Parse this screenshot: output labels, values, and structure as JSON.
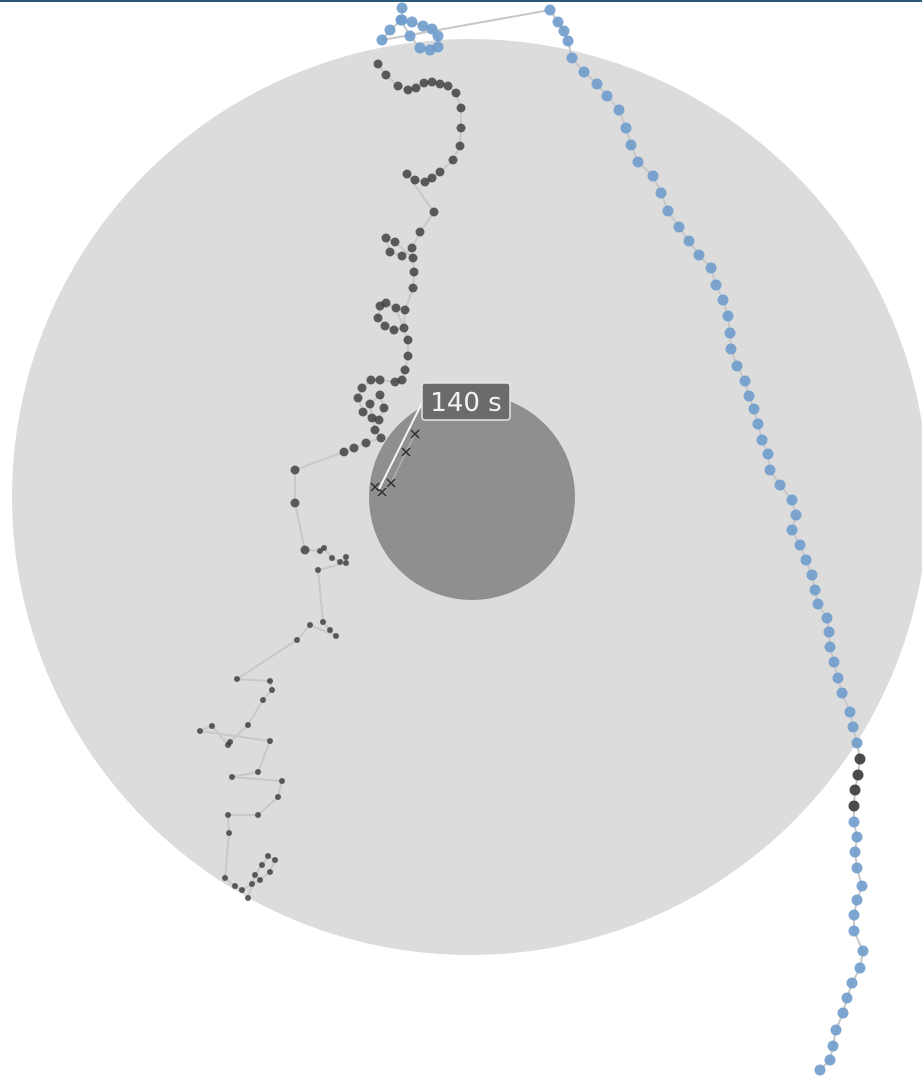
{
  "view": {
    "time_label": "140 s"
  },
  "colors": {
    "outer_zone": "#dcdcdc",
    "inner_zone": "#8f8f8f",
    "dark_track_point": "#3a3a3a",
    "blue_track_point": "#6f9ccb",
    "track_line": "#c8c8c8",
    "marker": "#2f2f2f",
    "pointer_line": "#f5f5f5",
    "label_box": "#6b6b6b",
    "header_bar": "#2d5a78"
  },
  "icons": {
    "current_marker": "x-marker-icon"
  }
}
